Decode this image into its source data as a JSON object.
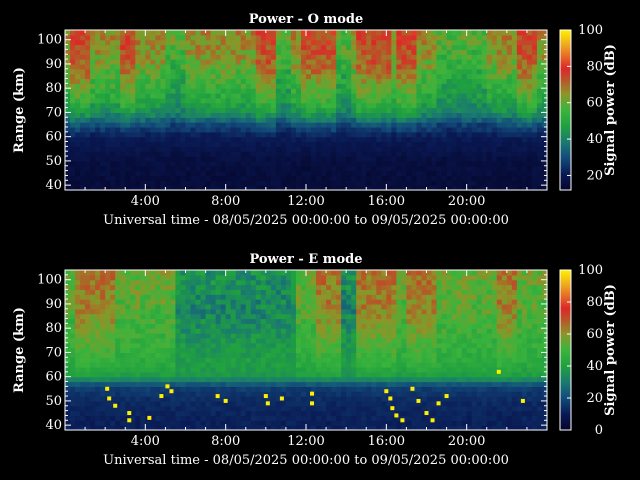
{
  "colors": {
    "background": "#000000",
    "axes": "#ffffff",
    "colormap": [
      "#05052a",
      "#0a1a55",
      "#124a7a",
      "#1a7a70",
      "#20a040",
      "#3cb43c",
      "#8c9628",
      "#b45a28",
      "#dc2828",
      "#e66e28",
      "#f0b41e",
      "#fff000"
    ]
  },
  "chart_data": [
    {
      "type": "heatmap",
      "title": "Power - O mode",
      "xlabel": "Universal time - 08/05/2025 00:00:00 to 09/05/2025 00:00:00",
      "ylabel": "Range (km)",
      "colorbar_label": "Signal power (dB)",
      "x_unit": "hours UT",
      "xlim": [
        0,
        24
      ],
      "ylim": [
        38,
        104
      ],
      "x_ticks": [
        {
          "value": 4,
          "label": "4:00"
        },
        {
          "value": 8,
          "label": "8:00"
        },
        {
          "value": 12,
          "label": "12:00"
        },
        {
          "value": 16,
          "label": "16:00"
        },
        {
          "value": 20,
          "label": "20:00"
        }
      ],
      "y_ticks": [
        40,
        50,
        60,
        70,
        80,
        90,
        100
      ],
      "clim": [
        12,
        100
      ],
      "colorbar_ticks": [
        20,
        40,
        60,
        80,
        100
      ],
      "profile": {
        "description": "approximate signal power vs range",
        "range_km": [
          40,
          50,
          60,
          65,
          70,
          75,
          80,
          85,
          90,
          95,
          100
        ],
        "power_db": [
          15,
          16,
          20,
          28,
          40,
          46,
          50,
          53,
          58,
          60,
          62
        ]
      },
      "strong_echo_periods_ut": [
        [
          0.3,
          1.2
        ],
        [
          2.8,
          3.6
        ],
        [
          9.5,
          10.5
        ],
        [
          11.8,
          13.5
        ],
        [
          14.5,
          16.2
        ],
        [
          16.5,
          17.5
        ],
        [
          22.5,
          23.5
        ]
      ],
      "weak_periods_ut": [
        [
          5.0,
          6.0
        ],
        [
          10.5,
          11.2
        ],
        [
          13.6,
          14.2
        ],
        [
          18.5,
          21.0
        ]
      ]
    },
    {
      "type": "heatmap",
      "title": "Power - E mode",
      "xlabel": "Universal time - 08/05/2025 00:00:00 to 09/05/2025 00:00:00",
      "ylabel": "Range (km)",
      "colorbar_label": "Signal power (dB)",
      "x_unit": "hours UT",
      "xlim": [
        0,
        24
      ],
      "ylim": [
        38,
        104
      ],
      "x_ticks": [
        {
          "value": 4,
          "label": "4:00"
        },
        {
          "value": 8,
          "label": "8:00"
        },
        {
          "value": 12,
          "label": "12:00"
        },
        {
          "value": 16,
          "label": "16:00"
        },
        {
          "value": 20,
          "label": "20:00"
        }
      ],
      "y_ticks": [
        40,
        50,
        60,
        70,
        80,
        90,
        100
      ],
      "clim": [
        0,
        100
      ],
      "colorbar_ticks": [
        0,
        20,
        40,
        60,
        80,
        100
      ],
      "profile": {
        "description": "approximate signal power vs range",
        "range_km": [
          40,
          50,
          56,
          60,
          65,
          70,
          80,
          90,
          100
        ],
        "power_db": [
          10,
          12,
          16,
          35,
          40,
          42,
          45,
          48,
          50
        ]
      },
      "quiet_periods_ut": [
        [
          5.5,
          11.5
        ],
        [
          13.8,
          14.4
        ]
      ],
      "strong_echo_periods_ut": [
        [
          0.5,
          2.5
        ],
        [
          12.6,
          13.7
        ],
        [
          14.5,
          16.5
        ],
        [
          17.0,
          18.5
        ],
        [
          21.5,
          22.5
        ]
      ],
      "low_range_spikes": [
        {
          "t": 2.1,
          "r": 55
        },
        {
          "t": 2.2,
          "r": 51
        },
        {
          "t": 2.5,
          "r": 48
        },
        {
          "t": 3.2,
          "r": 45
        },
        {
          "t": 3.2,
          "r": 42
        },
        {
          "t": 4.2,
          "r": 43
        },
        {
          "t": 4.8,
          "r": 52
        },
        {
          "t": 5.1,
          "r": 56
        },
        {
          "t": 5.3,
          "r": 54
        },
        {
          "t": 7.6,
          "r": 52
        },
        {
          "t": 8.0,
          "r": 50
        },
        {
          "t": 10.0,
          "r": 52
        },
        {
          "t": 10.1,
          "r": 49
        },
        {
          "t": 10.8,
          "r": 51
        },
        {
          "t": 12.3,
          "r": 53
        },
        {
          "t": 12.3,
          "r": 49
        },
        {
          "t": 16.0,
          "r": 54
        },
        {
          "t": 16.2,
          "r": 51
        },
        {
          "t": 16.3,
          "r": 47
        },
        {
          "t": 16.5,
          "r": 44
        },
        {
          "t": 16.8,
          "r": 42
        },
        {
          "t": 17.3,
          "r": 55
        },
        {
          "t": 17.6,
          "r": 50
        },
        {
          "t": 18.0,
          "r": 45
        },
        {
          "t": 18.3,
          "r": 42
        },
        {
          "t": 18.6,
          "r": 49
        },
        {
          "t": 19.0,
          "r": 52
        },
        {
          "t": 21.6,
          "r": 62
        },
        {
          "t": 22.8,
          "r": 50
        }
      ]
    }
  ]
}
